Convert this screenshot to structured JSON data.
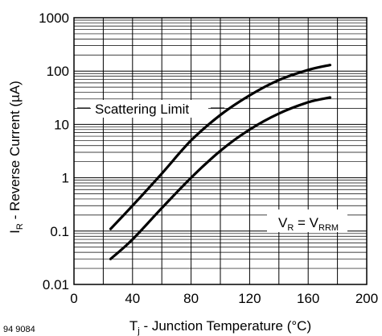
{
  "figure_id": "94 9084",
  "chart_data": {
    "type": "line",
    "x_scale": "linear",
    "y_scale": "log",
    "xlim": [
      0,
      200
    ],
    "ylim": [
      0.01,
      1000
    ],
    "grid": true,
    "x_ticks": [
      {
        "value": 0,
        "label": "0"
      },
      {
        "value": 40,
        "label": "40"
      },
      {
        "value": 80,
        "label": "80"
      },
      {
        "value": 120,
        "label": "120"
      },
      {
        "value": 160,
        "label": "160"
      },
      {
        "value": 200,
        "label": "200"
      }
    ],
    "y_ticks": [
      {
        "value": 1000,
        "label": "1000"
      },
      {
        "value": 100,
        "label": "100"
      },
      {
        "value": 10,
        "label": "10"
      },
      {
        "value": 1,
        "label": "1"
      },
      {
        "value": 0.1,
        "label": "0.1"
      },
      {
        "value": 0.01,
        "label": "0.01"
      }
    ],
    "xlabel": {
      "main": "T",
      "sub": "j",
      "rest": " - Junction Temperature (°C)"
    },
    "ylabel": {
      "main": "I",
      "sub": "R",
      "rest": " - Reverse Current (µA)"
    },
    "series": [
      {
        "x": [
          25,
          40,
          60,
          80,
          100,
          120,
          140,
          160,
          175
        ],
        "y": [
          0.11,
          0.3,
          1.2,
          5,
          15,
          35,
          68,
          105,
          130
        ]
      },
      {
        "x": [
          25,
          40,
          60,
          80,
          100,
          120,
          140,
          160,
          175
        ],
        "y": [
          0.03,
          0.07,
          0.27,
          1.0,
          3.2,
          8.0,
          16,
          26,
          32
        ]
      }
    ],
    "annotations": [
      {
        "label": "Scattering Limit"
      },
      {
        "label_main": "V",
        "label_sub1": "R",
        "label_eq": " = V",
        "label_sub2": "RRM"
      }
    ]
  }
}
